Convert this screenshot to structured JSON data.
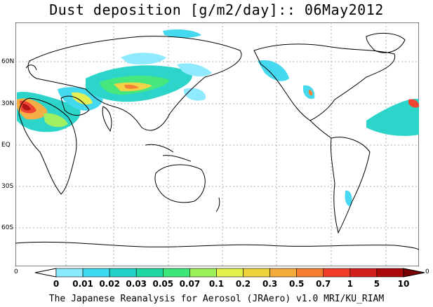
{
  "title": "Dust deposition [g/m2/day]:: 06May2012",
  "footer": "The Japanese Reanalysis for Aerosol (JRAero) v1.0 MRI/KU_RIAM",
  "map": {
    "latitude_labels": [
      "60N",
      "30N",
      "EQ",
      "30S",
      "60S"
    ],
    "axis_left": "0",
    "axis_right": "0"
  },
  "colorbar": {
    "labels": [
      "0",
      "0.01",
      "0.02",
      "0.03",
      "0.05",
      "0.07",
      "0.1",
      "0.2",
      "0.3",
      "0.5",
      "0.7",
      "1",
      "5",
      "10"
    ],
    "colors": [
      "#ffffff",
      "#8be9ff",
      "#3cd7f0",
      "#22d2c8",
      "#1ed7a0",
      "#3ce678",
      "#9bf05a",
      "#e1f04b",
      "#f0d23c",
      "#f5aa3c",
      "#f57d2d",
      "#f03c28",
      "#d21e1e",
      "#aa0a0a",
      "#780000"
    ]
  }
}
